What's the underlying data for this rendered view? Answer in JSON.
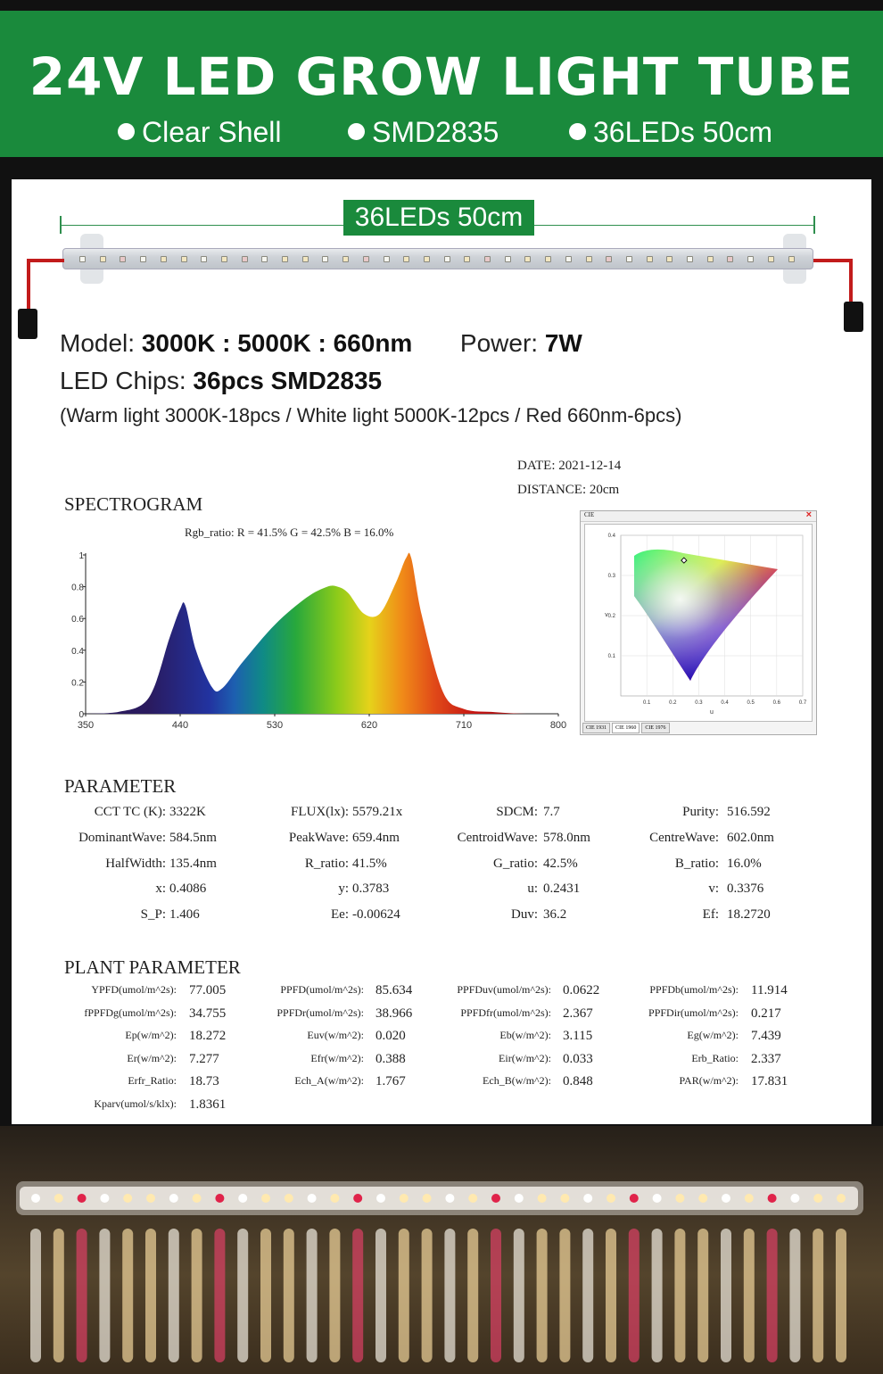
{
  "header": {
    "title": "24V LED GROW LIGHT TUBE",
    "features": [
      "Clear Shell",
      "SMD2835",
      "36LEDs 50cm"
    ]
  },
  "dimension_label": "36LEDs 50cm",
  "specs": {
    "model_label": "Model:",
    "model_value": "3000K : 5000K : 660nm",
    "power_label": "Power:",
    "power_value": "7W",
    "chips_label": "LED Chips:",
    "chips_value": "36pcs SMD2835",
    "chips_note": "(Warm light 3000K-18pcs / White light 5000K-12pcs / Red 660nm-6pcs)"
  },
  "report": {
    "date": "DATE: 2021-12-14",
    "distance": "DISTANCE: 20cm",
    "spectrogram_title": "SPECTROGRAM",
    "rgb_ratio": "Rgb_ratio: R = 41.5% G = 42.5% B = 16.0%"
  },
  "chart_data": [
    {
      "type": "area",
      "title": "SPECTROGRAM",
      "x": [
        350,
        380,
        410,
        430,
        440,
        445,
        455,
        470,
        480,
        500,
        530,
        560,
        580,
        590,
        600,
        615,
        630,
        645,
        655,
        660,
        670,
        690,
        710,
        740,
        770,
        800
      ],
      "y": [
        0,
        0.01,
        0.1,
        0.48,
        0.66,
        0.68,
        0.4,
        0.17,
        0.16,
        0.33,
        0.56,
        0.73,
        0.8,
        0.8,
        0.76,
        0.63,
        0.63,
        0.82,
        0.98,
        0.98,
        0.62,
        0.14,
        0.03,
        0.01,
        0,
        0
      ],
      "xticks": [
        "350",
        "440",
        "530",
        "620",
        "710",
        "800"
      ],
      "yticks": [
        "0",
        "0.2",
        "0.4",
        "0.6",
        "0.8",
        "1"
      ],
      "xlim": [
        350,
        800
      ],
      "ylim": [
        0,
        1
      ]
    },
    {
      "type": "scatter",
      "title": "CIE",
      "x": [
        0.2431
      ],
      "y": [
        0.3376
      ],
      "xlabel": "u",
      "ylabel": "v",
      "xticks": [
        "0.1",
        "0.2",
        "0.3",
        "0.4",
        "0.5",
        "0.6",
        "0.7"
      ],
      "yticks": [
        "0.1",
        "0.2",
        "0.3",
        "0.4"
      ],
      "xlim": [
        0,
        0.7
      ],
      "ylim": [
        0,
        0.4
      ],
      "tabs": [
        "CIE 1931",
        "CIE 1960",
        "CIE 1976"
      ],
      "close": "×"
    }
  ],
  "parameter": {
    "title": "PARAMETER",
    "rows": [
      [
        [
          "CCT TC (K):",
          "3322K"
        ],
        [
          "FLUX(lx):",
          "5579.21x"
        ],
        [
          "SDCM:",
          "7.7"
        ],
        [
          "Purity:",
          "516.592"
        ]
      ],
      [
        [
          "DominantWave:",
          "584.5nm"
        ],
        [
          "PeakWave:",
          "659.4nm"
        ],
        [
          "CentroidWave:",
          "578.0nm"
        ],
        [
          "CentreWave:",
          "602.0nm"
        ]
      ],
      [
        [
          "HalfWidth:",
          "135.4nm"
        ],
        [
          "R_ratio:",
          "41.5%"
        ],
        [
          "G_ratio:",
          "42.5%"
        ],
        [
          "B_ratio:",
          "16.0%"
        ]
      ],
      [
        [
          "x:",
          "0.4086"
        ],
        [
          "y:",
          "0.3783"
        ],
        [
          "u:",
          "0.2431"
        ],
        [
          "v:",
          "0.3376"
        ]
      ],
      [
        [
          "S_P:",
          "1.406"
        ],
        [
          "Ee:",
          "-0.00624"
        ],
        [
          "Duv:",
          "36.2"
        ],
        [
          "Ef:",
          "18.2720"
        ]
      ]
    ]
  },
  "plant": {
    "title": "PLANT PARAMETER",
    "rows": [
      [
        [
          "YPFD(umol/m^2s):",
          "77.005"
        ],
        [
          "PPFD(umol/m^2s):",
          "85.634"
        ],
        [
          "PPFDuv(umol/m^2s):",
          "0.0622"
        ],
        [
          "PPFDb(umol/m^2s):",
          "11.914"
        ]
      ],
      [
        [
          "fPPFDg(umol/m^2s):",
          "34.755"
        ],
        [
          "PPFDr(umol/m^2s):",
          "38.966"
        ],
        [
          "PPFDfr(umol/m^2s):",
          "2.367"
        ],
        [
          "PPFDir(umol/m^2s):",
          "0.217"
        ]
      ],
      [
        [
          "Ep(w/m^2):",
          "18.272"
        ],
        [
          "Euv(w/m^2):",
          "0.020"
        ],
        [
          "Eb(w/m^2):",
          "3.115"
        ],
        [
          "Eg(w/m^2):",
          "7.439"
        ]
      ],
      [
        [
          "Er(w/m^2):",
          "7.277"
        ],
        [
          "Efr(w/m^2):",
          "0.388"
        ],
        [
          "Eir(w/m^2):",
          "0.033"
        ],
        [
          "Erb_Ratio:",
          "2.337"
        ]
      ],
      [
        [
          "Erfr_Ratio:",
          "18.73"
        ],
        [
          "Ech_A(w/m^2):",
          "1.767"
        ],
        [
          "Ech_B(w/m^2):",
          "0.848"
        ],
        [
          "PAR(w/m^2):",
          "17.831"
        ]
      ],
      [
        [
          "Kparv(umol/s/klx):",
          "1.8361"
        ],
        null,
        null,
        null
      ]
    ]
  },
  "colors": {
    "brand_green": "#1a8a3c",
    "warm_led": "#ffe9b0",
    "white_led": "#ffffff",
    "red_led": "#e0234a"
  }
}
